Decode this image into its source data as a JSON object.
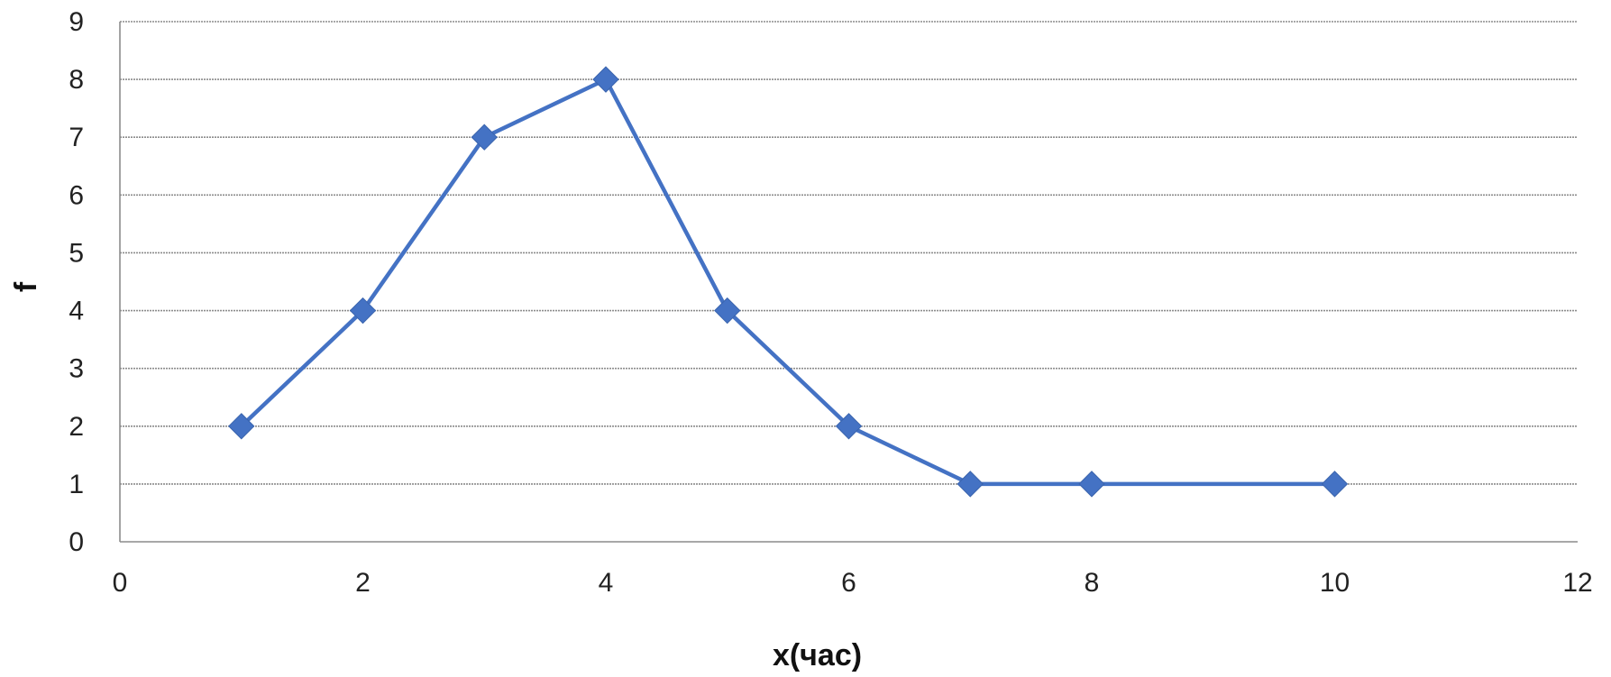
{
  "chart_data": {
    "type": "line",
    "title": "",
    "xlabel": "x(час)",
    "ylabel": "f",
    "xlim": [
      0,
      12
    ],
    "ylim": [
      0,
      9
    ],
    "x_ticks": [
      "0",
      "2",
      "4",
      "6",
      "8",
      "10",
      "12"
    ],
    "y_ticks": [
      "0",
      "1",
      "2",
      "3",
      "4",
      "5",
      "6",
      "7",
      "8",
      "9"
    ],
    "grid": "horizontal",
    "legend": "none",
    "series": [
      {
        "x": [
          1,
          2,
          3,
          4,
          5,
          6,
          7,
          8,
          10
        ],
        "y": [
          2,
          4,
          7,
          8,
          4,
          2,
          1,
          1,
          1
        ],
        "color": "#4472C4",
        "marker": "diamond"
      }
    ]
  }
}
